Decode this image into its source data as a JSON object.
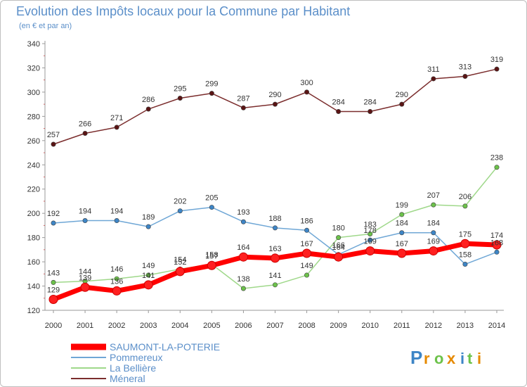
{
  "chart_data": {
    "type": "line",
    "title": "Evolution des Impôts locaux pour la Commune par Habitant",
    "subtitle": "(en € et par an)",
    "x": [
      "2000",
      "2001",
      "2002",
      "2003",
      "2004",
      "2005",
      "2006",
      "2007",
      "2008",
      "2009",
      "2010",
      "2011",
      "2012",
      "2013",
      "2014"
    ],
    "ylim": [
      120,
      340
    ],
    "yticks": [
      120,
      140,
      160,
      180,
      200,
      220,
      240,
      260,
      280,
      300,
      320,
      340
    ],
    "grid": false,
    "legend_position": "bottom-left",
    "series": [
      {
        "name": "Méneral",
        "color": "#7b2d2d",
        "marker": "#5a1414",
        "values": [
          257,
          266,
          271,
          286,
          295,
          299,
          287,
          290,
          300,
          284,
          284,
          290,
          311,
          313,
          319
        ]
      },
      {
        "name": "La Bellière",
        "color": "#9fd88a",
        "marker": "#6cc24a",
        "values": [
          143,
          144,
          146,
          149,
          154,
          158,
          138,
          141,
          149,
          180,
          183,
          199,
          207,
          206,
          238
        ]
      },
      {
        "name": "Pommereux",
        "color": "#6fa7d6",
        "marker": "#3d85c6",
        "values": [
          192,
          194,
          194,
          189,
          202,
          205,
          193,
          188,
          186,
          166,
          178,
          184,
          184,
          158,
          168
        ]
      },
      {
        "name": "SAUMONT-LA-POTERIE",
        "color": "#ff0000",
        "marker": "#e00000",
        "values": [
          129,
          139,
          136,
          141,
          152,
          157,
          164,
          163,
          167,
          164,
          169,
          167,
          169,
          175,
          174
        ]
      }
    ],
    "legend_order": [
      "SAUMONT-LA-POTERIE",
      "Pommereux",
      "La Bellière",
      "Méneral"
    ]
  },
  "branding": {
    "logo_text": "Proxiti"
  }
}
